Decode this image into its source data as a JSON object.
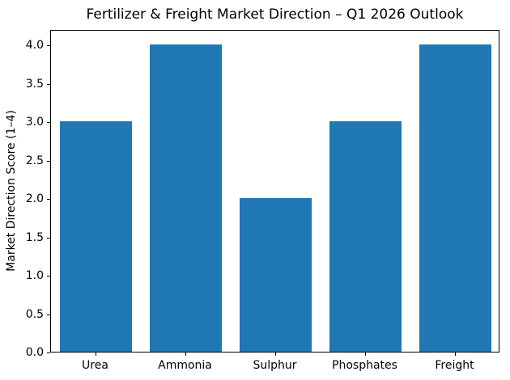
{
  "chart_data": {
    "type": "bar",
    "categories": [
      "Urea",
      "Ammonia",
      "Sulphur",
      "Phosphates",
      "Freight"
    ],
    "values": [
      3,
      4,
      2,
      3,
      4
    ],
    "title": "Fertilizer & Freight Market Direction – Q1 2026 Outlook",
    "xlabel": "",
    "ylabel": "Market Direction Score (1–4)",
    "ylim": [
      0,
      4.2
    ],
    "yticks": [
      0.0,
      0.5,
      1.0,
      1.5,
      2.0,
      2.5,
      3.0,
      3.5,
      4.0
    ],
    "bar_color": "#1f77b4",
    "grid": false,
    "legend_position": "none"
  }
}
